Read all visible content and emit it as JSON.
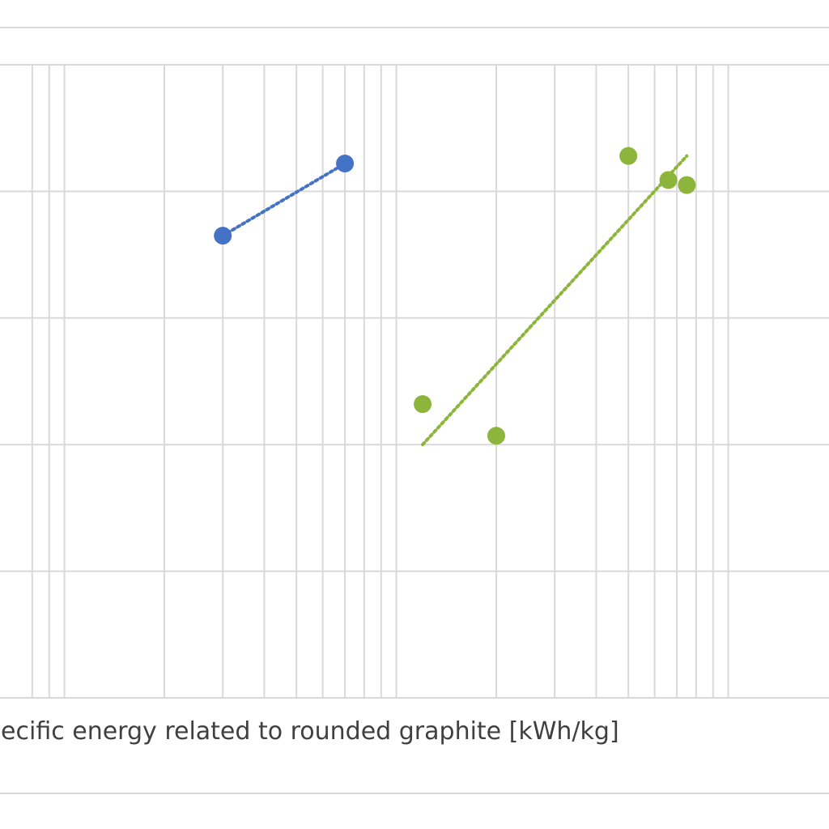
{
  "chart_data": {
    "type": "scatter",
    "title": "",
    "xlabel": "pecific energy related to rounded graphite [kWh/kg]",
    "ylabel": "",
    "x_scale": "log",
    "xlim": [
      0.8,
      160
    ],
    "ylim": [
      0,
      5
    ],
    "grid": true,
    "legend": "none",
    "series": [
      {
        "color": "#4472c4",
        "points": [
          {
            "x": 3.0,
            "y": 3.65
          },
          {
            "x": 7.0,
            "y": 4.22
          }
        ],
        "trendline": {
          "style": "dotted",
          "from": {
            "x": 3.0,
            "y": 3.65
          },
          "to": {
            "x": 7.0,
            "y": 4.22
          }
        }
      },
      {
        "color": "#8db53c",
        "points": [
          {
            "x": 12.0,
            "y": 2.32
          },
          {
            "x": 20.0,
            "y": 2.07
          },
          {
            "x": 50.0,
            "y": 4.28
          },
          {
            "x": 66.0,
            "y": 4.09
          },
          {
            "x": 75.0,
            "y": 4.05
          }
        ],
        "trendline": {
          "style": "dotted",
          "from": {
            "x": 12.0,
            "y": 2.0
          },
          "to": {
            "x": 75.0,
            "y": 4.28
          }
        }
      }
    ]
  }
}
